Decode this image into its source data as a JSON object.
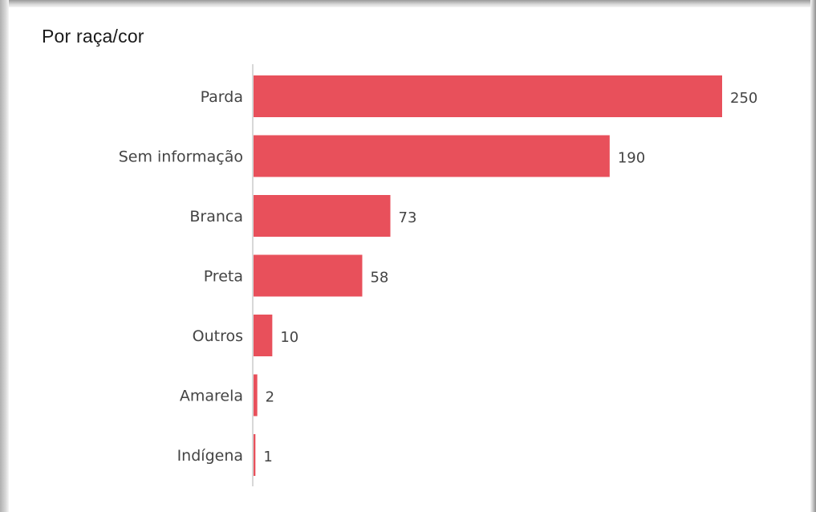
{
  "chart_data": {
    "type": "bar",
    "orientation": "horizontal",
    "title": "Por raça/cor",
    "categories": [
      "Parda",
      "Sem informação",
      "Branca",
      "Preta",
      "Outros",
      "Amarela",
      "Indígena"
    ],
    "values": [
      250,
      190,
      73,
      58,
      10,
      2,
      1
    ],
    "xlabel": "",
    "ylabel": "",
    "xlim": [
      0,
      250
    ],
    "grid": false,
    "legend": "none",
    "bar_color": "#e8505b",
    "show_value_labels": true
  }
}
